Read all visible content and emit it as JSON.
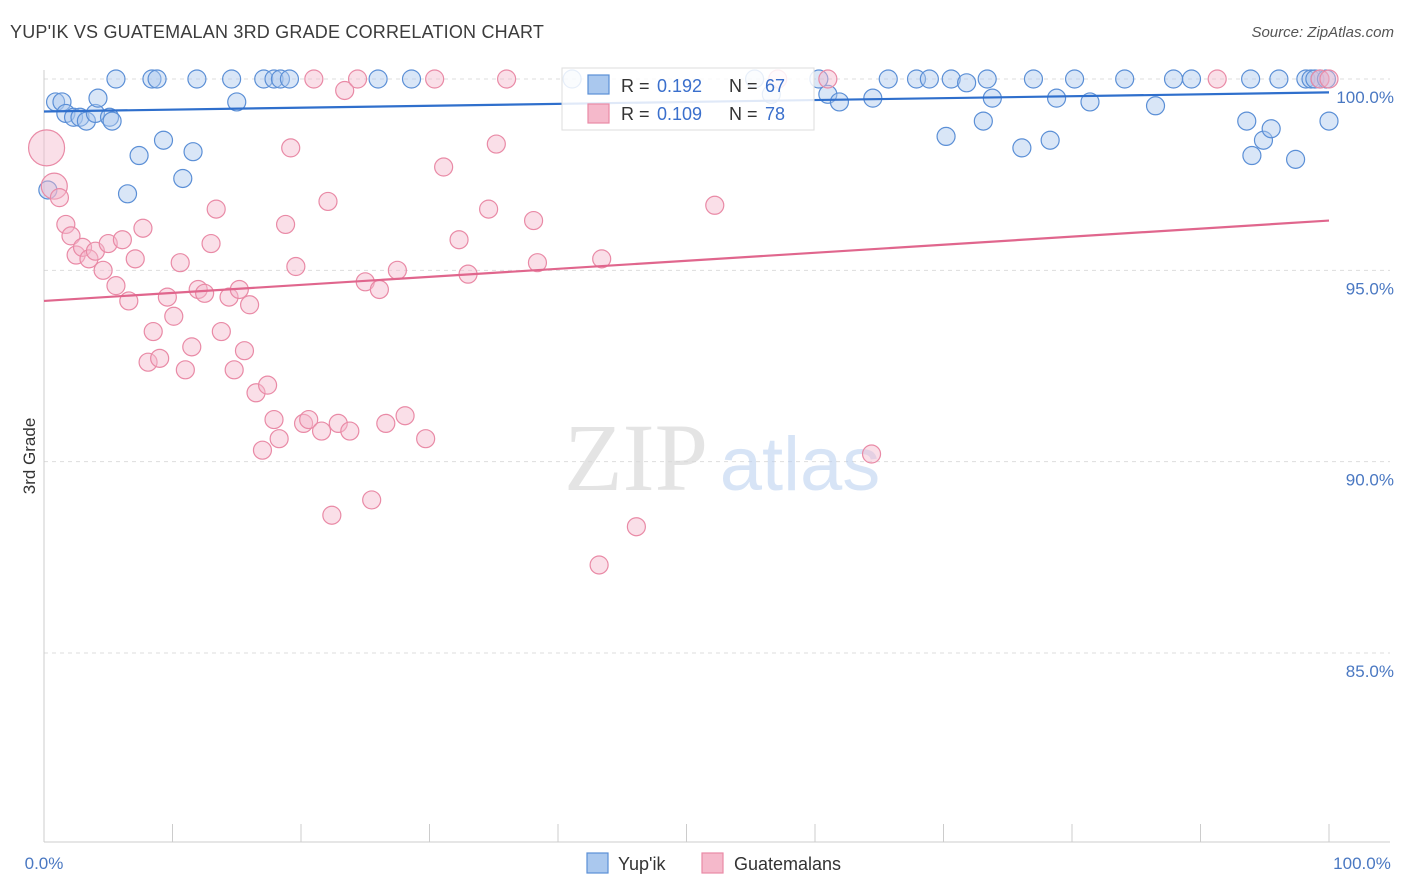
{
  "header": {
    "title": "YUP'IK VS GUATEMALAN 3RD GRADE CORRELATION CHART",
    "source": "Source: ZipAtlas.com"
  },
  "watermark": {
    "zip": "ZIP",
    "atlas": "atlas"
  },
  "colors": {
    "blue_fill": "#aac8ee",
    "blue_stroke": "#5b8fd6",
    "blue_line": "#2f6fcc",
    "pink_fill": "#f5b9cb",
    "pink_stroke": "#e98aa6",
    "pink_line": "#e0668d",
    "axis_text": "#4a78c2",
    "grid": "#dddddd"
  },
  "legend_box": {
    "rows": [
      {
        "r_label": "R =",
        "r_value": "0.192",
        "n_label": "N =",
        "n_value": "67"
      },
      {
        "r_label": "R =",
        "r_value": "0.109",
        "n_label": "N =",
        "n_value": "78"
      }
    ]
  },
  "bottom_legend": [
    "Yup'ik",
    "Guatemalans"
  ],
  "chart_data": {
    "type": "scatter",
    "title": "YUP'IK VS GUATEMALAN 3RD GRADE CORRELATION CHART",
    "xlabel": "",
    "ylabel": "3rd Grade",
    "xlim": [
      0,
      100
    ],
    "ylim": [
      80.5,
      100.8
    ],
    "y_ticks": [
      85,
      90,
      95,
      100
    ],
    "y_tick_labels": [
      "85.0%",
      "90.0%",
      "95.0%",
      "100.0%"
    ],
    "x_tick_labels": [
      "0.0%",
      "100.0%"
    ],
    "grid": true,
    "legend_position": "top-center",
    "series": [
      {
        "name": "Yup'ik",
        "color": "#aac8ee",
        "trend": {
          "x": [
            0,
            100
          ],
          "y": [
            99.15,
            99.65
          ]
        },
        "points": [
          [
            0.3,
            97.1
          ],
          [
            0.9,
            99.4
          ],
          [
            1.4,
            99.4
          ],
          [
            1.7,
            99.1
          ],
          [
            2.3,
            99.0
          ],
          [
            2.8,
            99.0
          ],
          [
            3.3,
            98.9
          ],
          [
            4.0,
            99.1
          ],
          [
            4.2,
            99.5
          ],
          [
            5.1,
            99.0
          ],
          [
            5.3,
            98.9
          ],
          [
            5.6,
            100.0
          ],
          [
            6.5,
            97.0
          ],
          [
            7.4,
            98.0
          ],
          [
            8.4,
            100.0
          ],
          [
            8.8,
            100.0
          ],
          [
            9.3,
            98.4
          ],
          [
            10.8,
            97.4
          ],
          [
            11.6,
            98.1
          ],
          [
            11.9,
            100.0
          ],
          [
            14.6,
            100.0
          ],
          [
            15.0,
            99.4
          ],
          [
            17.1,
            100.0
          ],
          [
            17.9,
            100.0
          ],
          [
            18.4,
            100.0
          ],
          [
            19.1,
            100.0
          ],
          [
            26.0,
            100.0
          ],
          [
            28.6,
            100.0
          ],
          [
            41.1,
            100.0
          ],
          [
            55.3,
            100.0
          ],
          [
            56.6,
            99.6
          ],
          [
            60.3,
            100.0
          ],
          [
            61.0,
            99.6
          ],
          [
            61.9,
            99.4
          ],
          [
            64.5,
            99.5
          ],
          [
            65.7,
            100.0
          ],
          [
            67.9,
            100.0
          ],
          [
            68.9,
            100.0
          ],
          [
            70.2,
            98.5
          ],
          [
            70.6,
            100.0
          ],
          [
            71.8,
            99.9
          ],
          [
            73.1,
            98.9
          ],
          [
            73.4,
            100.0
          ],
          [
            73.8,
            99.5
          ],
          [
            76.1,
            98.2
          ],
          [
            77.0,
            100.0
          ],
          [
            78.3,
            98.4
          ],
          [
            78.8,
            99.5
          ],
          [
            80.2,
            100.0
          ],
          [
            81.4,
            99.4
          ],
          [
            84.1,
            100.0
          ],
          [
            86.5,
            99.3
          ],
          [
            87.9,
            100.0
          ],
          [
            89.3,
            100.0
          ],
          [
            93.6,
            98.9
          ],
          [
            93.9,
            100.0
          ],
          [
            94.0,
            98.0
          ],
          [
            94.9,
            98.4
          ],
          [
            95.5,
            98.7
          ],
          [
            96.1,
            100.0
          ],
          [
            97.4,
            97.9
          ],
          [
            98.2,
            100.0
          ],
          [
            98.6,
            100.0
          ],
          [
            98.9,
            100.0
          ],
          [
            99.3,
            100.0
          ],
          [
            99.8,
            100.0
          ],
          [
            100.0,
            98.9
          ]
        ]
      },
      {
        "name": "Guatemalans",
        "color": "#f5b9cb",
        "trend": {
          "x": [
            0,
            100
          ],
          "y": [
            94.2,
            96.3
          ]
        },
        "points": [
          [
            0.2,
            98.2
          ],
          [
            0.8,
            97.2
          ],
          [
            1.2,
            96.9
          ],
          [
            1.7,
            96.2
          ],
          [
            2.1,
            95.9
          ],
          [
            2.5,
            95.4
          ],
          [
            3.0,
            95.6
          ],
          [
            3.5,
            95.3
          ],
          [
            4.0,
            95.5
          ],
          [
            4.6,
            95.0
          ],
          [
            5.0,
            95.7
          ],
          [
            5.6,
            94.6
          ],
          [
            6.1,
            95.8
          ],
          [
            6.6,
            94.2
          ],
          [
            7.1,
            95.3
          ],
          [
            7.7,
            96.1
          ],
          [
            8.1,
            92.6
          ],
          [
            8.5,
            93.4
          ],
          [
            9.0,
            92.7
          ],
          [
            9.6,
            94.3
          ],
          [
            10.1,
            93.8
          ],
          [
            10.6,
            95.2
          ],
          [
            11.0,
            92.4
          ],
          [
            11.5,
            93.0
          ],
          [
            12.0,
            94.5
          ],
          [
            12.5,
            94.4
          ],
          [
            13.0,
            95.7
          ],
          [
            13.4,
            96.6
          ],
          [
            13.8,
            93.4
          ],
          [
            14.4,
            94.3
          ],
          [
            14.8,
            92.4
          ],
          [
            15.2,
            94.5
          ],
          [
            15.6,
            92.9
          ],
          [
            16.0,
            94.1
          ],
          [
            16.5,
            91.8
          ],
          [
            17.0,
            90.3
          ],
          [
            17.4,
            92.0
          ],
          [
            17.9,
            91.1
          ],
          [
            18.3,
            90.6
          ],
          [
            18.8,
            96.2
          ],
          [
            19.2,
            98.2
          ],
          [
            19.6,
            95.1
          ],
          [
            20.2,
            91.0
          ],
          [
            20.6,
            91.1
          ],
          [
            21.0,
            100.0
          ],
          [
            21.6,
            90.8
          ],
          [
            22.1,
            96.8
          ],
          [
            22.4,
            88.6
          ],
          [
            22.9,
            91.0
          ],
          [
            23.4,
            99.7
          ],
          [
            23.8,
            90.8
          ],
          [
            24.4,
            100.0
          ],
          [
            25.0,
            94.7
          ],
          [
            25.5,
            89.0
          ],
          [
            26.1,
            94.5
          ],
          [
            26.6,
            91.0
          ],
          [
            27.5,
            95.0
          ],
          [
            28.1,
            91.2
          ],
          [
            29.7,
            90.6
          ],
          [
            30.4,
            100.0
          ],
          [
            31.1,
            97.7
          ],
          [
            32.3,
            95.8
          ],
          [
            33.0,
            94.9
          ],
          [
            34.6,
            96.6
          ],
          [
            35.2,
            98.3
          ],
          [
            36.0,
            100.0
          ],
          [
            38.1,
            96.3
          ],
          [
            38.4,
            95.2
          ],
          [
            43.2,
            87.3
          ],
          [
            43.4,
            95.3
          ],
          [
            46.1,
            88.3
          ],
          [
            52.2,
            96.7
          ],
          [
            57.1,
            100.0
          ],
          [
            61.0,
            100.0
          ],
          [
            64.4,
            90.2
          ],
          [
            91.3,
            100.0
          ],
          [
            99.3,
            100.0
          ],
          [
            100.0,
            100.0
          ]
        ]
      }
    ]
  }
}
